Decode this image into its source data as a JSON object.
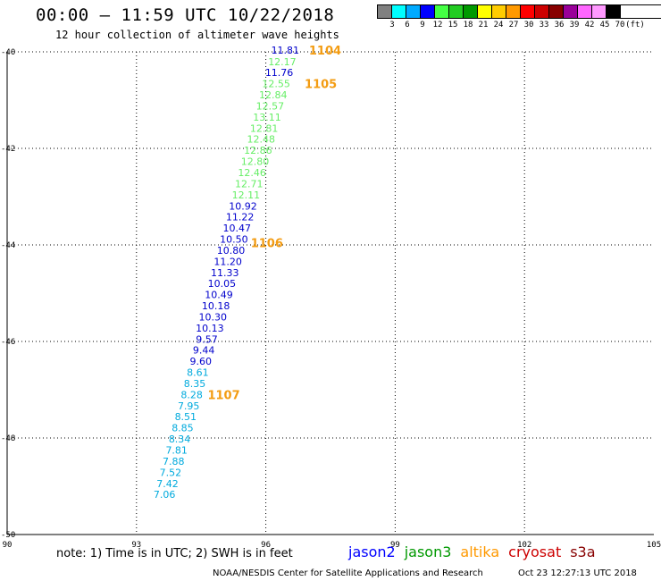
{
  "title": "00:00 – 11:59 UTC 10/22/2018",
  "subtitle": "12 hour collection of altimeter wave heights",
  "legend": {
    "colors": [
      "#808080",
      "#00ffff",
      "#00aaff",
      "#0000ff",
      "#44ff44",
      "#22cc22",
      "#009900",
      "#ffff00",
      "#ffcc00",
      "#ff9900",
      "#ff0000",
      "#cc0000",
      "#880000",
      "#990099",
      "#ff66ff",
      "#ff99ff",
      "#000000"
    ],
    "labels": [
      "3",
      "6",
      "9",
      "12",
      "15",
      "18",
      "21",
      "24",
      "27",
      "30",
      "33",
      "36",
      "39",
      "42",
      "45",
      "70",
      "(ft)"
    ]
  },
  "axes": {
    "lon_min": 90,
    "lon_max": 105,
    "lat_min": -50,
    "lat_max": -40,
    "lon_ticks": [
      "90",
      "93",
      "96",
      "99",
      "102",
      "105"
    ],
    "lat_ticks": [
      "-40",
      "-42",
      "-44",
      "-46",
      "-48",
      "-50"
    ]
  },
  "wave_heights": [
    {
      "lon": 96.45,
      "lat": -39.96,
      "v": "11.81",
      "color": "#0000cc"
    },
    {
      "lon": 96.38,
      "lat": -40.2,
      "v": "12.17",
      "color": "#66ee66"
    },
    {
      "lon": 96.31,
      "lat": -40.43,
      "v": "11.76",
      "color": "#0000cc"
    },
    {
      "lon": 96.24,
      "lat": -40.66,
      "v": "12.55",
      "color": "#66ee66"
    },
    {
      "lon": 96.17,
      "lat": -40.89,
      "v": "12.84",
      "color": "#66ee66"
    },
    {
      "lon": 96.1,
      "lat": -41.12,
      "v": "12.57",
      "color": "#66ee66"
    },
    {
      "lon": 96.03,
      "lat": -41.35,
      "v": "13.11",
      "color": "#66ee66"
    },
    {
      "lon": 95.96,
      "lat": -41.58,
      "v": "12.81",
      "color": "#66ee66"
    },
    {
      "lon": 95.89,
      "lat": -41.81,
      "v": "12.48",
      "color": "#66ee66"
    },
    {
      "lon": 95.82,
      "lat": -42.04,
      "v": "12.86",
      "color": "#66ee66"
    },
    {
      "lon": 95.75,
      "lat": -42.27,
      "v": "12.80",
      "color": "#66ee66"
    },
    {
      "lon": 95.68,
      "lat": -42.5,
      "v": "12.46",
      "color": "#66ee66"
    },
    {
      "lon": 95.61,
      "lat": -42.73,
      "v": "12.71",
      "color": "#66ee66"
    },
    {
      "lon": 95.54,
      "lat": -42.96,
      "v": "12.11",
      "color": "#66ee66"
    },
    {
      "lon": 95.47,
      "lat": -43.19,
      "v": "10.92",
      "color": "#0000cc"
    },
    {
      "lon": 95.4,
      "lat": -43.42,
      "v": "11.22",
      "color": "#0000cc"
    },
    {
      "lon": 95.33,
      "lat": -43.65,
      "v": "10.47",
      "color": "#0000cc"
    },
    {
      "lon": 95.26,
      "lat": -43.88,
      "v": "10.50",
      "color": "#0000cc"
    },
    {
      "lon": 95.19,
      "lat": -44.11,
      "v": "10.80",
      "color": "#0000cc"
    },
    {
      "lon": 95.12,
      "lat": -44.34,
      "v": "11.20",
      "color": "#0000cc"
    },
    {
      "lon": 95.05,
      "lat": -44.57,
      "v": "11.33",
      "color": "#0000cc"
    },
    {
      "lon": 94.98,
      "lat": -44.8,
      "v": "10.05",
      "color": "#0000cc"
    },
    {
      "lon": 94.91,
      "lat": -45.03,
      "v": "10.49",
      "color": "#0000cc"
    },
    {
      "lon": 94.84,
      "lat": -45.26,
      "v": "10.18",
      "color": "#0000cc"
    },
    {
      "lon": 94.77,
      "lat": -45.49,
      "v": "10.30",
      "color": "#0000cc"
    },
    {
      "lon": 94.7,
      "lat": -45.72,
      "v": "10.13",
      "color": "#0000cc"
    },
    {
      "lon": 94.63,
      "lat": -45.95,
      "v": "9.57",
      "color": "#0000cc"
    },
    {
      "lon": 94.56,
      "lat": -46.18,
      "v": "9.44",
      "color": "#0000cc"
    },
    {
      "lon": 94.49,
      "lat": -46.41,
      "v": "9.60",
      "color": "#0000cc"
    },
    {
      "lon": 94.42,
      "lat": -46.64,
      "v": "8.61",
      "color": "#00aadd"
    },
    {
      "lon": 94.35,
      "lat": -46.87,
      "v": "8.35",
      "color": "#00aadd"
    },
    {
      "lon": 94.28,
      "lat": -47.1,
      "v": "8.28",
      "color": "#00aadd"
    },
    {
      "lon": 94.21,
      "lat": -47.33,
      "v": "7.95",
      "color": "#00aadd"
    },
    {
      "lon": 94.14,
      "lat": -47.56,
      "v": "8.51",
      "color": "#00aadd"
    },
    {
      "lon": 94.07,
      "lat": -47.79,
      "v": "8.85",
      "color": "#00aadd"
    },
    {
      "lon": 94.0,
      "lat": -48.02,
      "v": "8.34",
      "color": "#00aadd"
    },
    {
      "lon": 93.93,
      "lat": -48.25,
      "v": "7.81",
      "color": "#00aadd"
    },
    {
      "lon": 93.86,
      "lat": -48.48,
      "v": "7.88",
      "color": "#00aadd"
    },
    {
      "lon": 93.79,
      "lat": -48.71,
      "v": "7.52",
      "color": "#00aadd"
    },
    {
      "lon": 93.72,
      "lat": -48.94,
      "v": "7.42",
      "color": "#00aadd"
    },
    {
      "lon": 93.65,
      "lat": -49.17,
      "v": "7.06",
      "color": "#00aadd"
    }
  ],
  "orbits": [
    {
      "label": "1104",
      "lon": 97.0,
      "lat": -39.96
    },
    {
      "label": "1105",
      "lon": 96.9,
      "lat": -40.66
    },
    {
      "label": "1106",
      "lon": 95.65,
      "lat": -43.95
    },
    {
      "label": "1107",
      "lon": 94.65,
      "lat": -47.1
    }
  ],
  "note": "note: 1) Time is in UTC; 2) SWH is in feet",
  "satellites": [
    {
      "name": "jason2",
      "color": "#0000ff"
    },
    {
      "name": "jason3",
      "color": "#009900"
    },
    {
      "name": "altika",
      "color": "#ff9900"
    },
    {
      "name": "cryosat",
      "color": "#cc0000"
    },
    {
      "name": "s3a",
      "color": "#880000"
    }
  ],
  "credit": "NOAA/NESDIS Center for Satellite Applications and Research",
  "timestamp": "Oct 23 12:27:13 UTC 2018"
}
